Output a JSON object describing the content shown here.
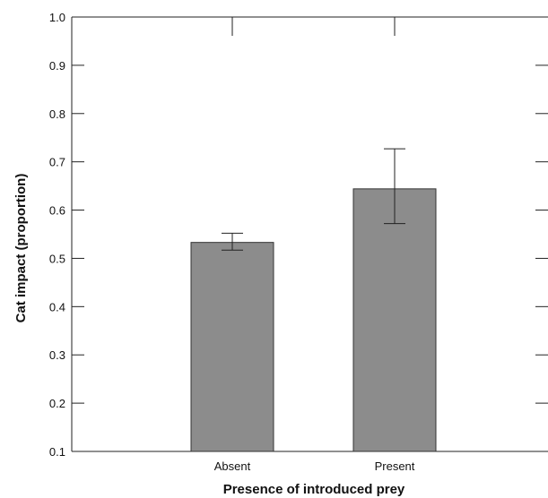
{
  "chart_data": {
    "type": "bar",
    "title": "",
    "xlabel": "Presence of introduced prey",
    "ylabel": "Cat impact (proportion)",
    "categories": [
      "Absent",
      "Present"
    ],
    "values": [
      0.533,
      0.644
    ],
    "error_low": [
      0.517,
      0.572
    ],
    "error_high": [
      0.552,
      0.727
    ],
    "ylim": [
      0.1,
      1.0
    ],
    "yticks": [
      0.1,
      0.2,
      0.3,
      0.4,
      0.5,
      0.6,
      0.7,
      0.8,
      0.9,
      1.0
    ],
    "ytick_labels": [
      "0.1",
      "0.2",
      "0.3",
      "0.4",
      "0.5",
      "0.6",
      "0.7",
      "0.8",
      "0.9",
      "1.0"
    ],
    "grid": false,
    "legend": "none",
    "bar_color": "#8c8c8c",
    "edge_color": "#333333"
  }
}
